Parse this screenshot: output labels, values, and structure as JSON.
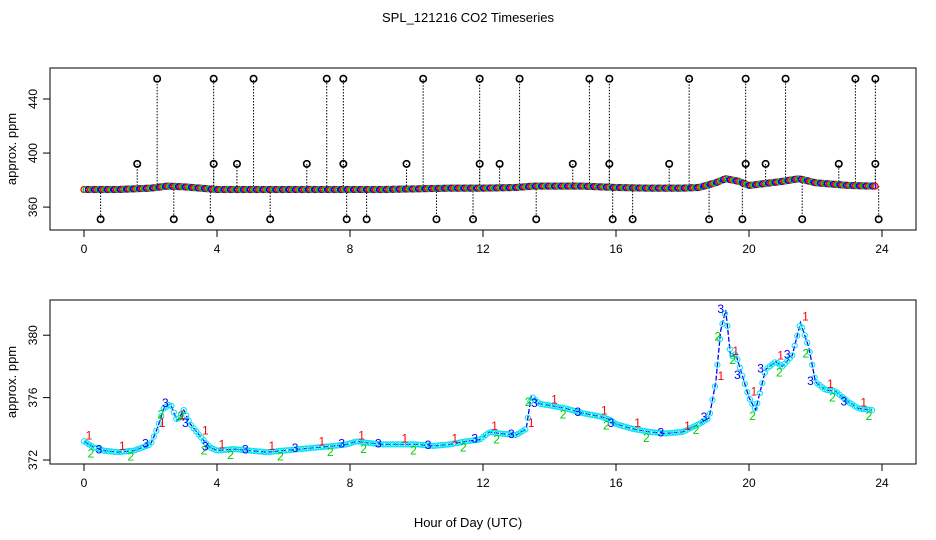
{
  "page": {
    "title": "SPL_121216  CO2 Timeseries",
    "xlabel": "Hour of Day (UTC)"
  },
  "colors": {
    "black": "#000000",
    "red": "#ff0000",
    "green": "#00cd00",
    "blue": "#0000ff",
    "cyan": "#00e5ee"
  },
  "chart_data": [
    {
      "type": "scatter",
      "panel": "top",
      "ylabel": "approx. ppm",
      "xlim": [
        0,
        24
      ],
      "ylim": [
        346,
        460
      ],
      "xticks": [
        "0",
        "4",
        "8",
        "12",
        "16",
        "20",
        "24"
      ],
      "yticks": [
        "360",
        "400",
        "440"
      ],
      "trend": {
        "x": [
          0,
          1,
          2,
          2.5,
          3,
          3.5,
          4,
          5,
          6,
          7,
          8,
          9,
          10,
          11,
          12,
          13,
          13.5,
          14,
          15,
          16,
          17,
          18,
          18.5,
          19,
          19.3,
          19.7,
          20,
          20.5,
          21,
          21.5,
          22,
          23,
          23.8
        ],
        "y": [
          373,
          373,
          374,
          375.5,
          375,
          374,
          373,
          373,
          373,
          373,
          373,
          373,
          373.5,
          374,
          374,
          374.5,
          375.5,
          375.5,
          375.5,
          374.5,
          374,
          374,
          374.5,
          378,
          381,
          379,
          376,
          377.5,
          379,
          381,
          378,
          376,
          375.5
        ]
      },
      "outliers_high": {
        "x": [
          2.2,
          3.9,
          5.1,
          7.3,
          7.8,
          10.2,
          11.9,
          13.1,
          15.2,
          15.8,
          18.2,
          19.9,
          21.1,
          23.2,
          23.8
        ],
        "y": 455
      },
      "outliers_mid": {
        "x": [
          1.6,
          3.9,
          4.6,
          6.7,
          7.8,
          9.7,
          11.9,
          12.5,
          14.7,
          15.8,
          17.6,
          19.9,
          20.5,
          22.7,
          23.8
        ],
        "y": 392
      },
      "outliers_low": {
        "x": [
          0.5,
          2.7,
          3.8,
          5.6,
          7.9,
          8.5,
          10.6,
          11.7,
          13.6,
          15.9,
          16.5,
          18.8,
          19.8,
          21.6,
          23.9
        ],
        "y": 351
      },
      "series": [
        {
          "color": "#ff0000"
        },
        {
          "color": "#00cd00"
        },
        {
          "color": "#0000ff"
        }
      ]
    },
    {
      "type": "scatter",
      "panel": "bottom",
      "ylabel": "approx. ppm",
      "xlim": [
        0,
        24
      ],
      "ylim": [
        372,
        382
      ],
      "xticks": [
        "0",
        "4",
        "8",
        "12",
        "16",
        "20",
        "24"
      ],
      "yticks": [
        "372",
        "376",
        "380"
      ],
      "series": [
        {
          "label": "1",
          "color": "#ff0000"
        },
        {
          "label": "2",
          "color": "#00cd00"
        },
        {
          "label": "3",
          "color": "#0000ff"
        }
      ],
      "x": [
        0,
        0.3,
        0.6,
        1,
        1.5,
        2,
        2.2,
        2.4,
        2.6,
        2.8,
        3,
        3.2,
        3.5,
        3.7,
        3.8,
        4,
        4.5,
        5,
        5.5,
        6,
        6.5,
        7,
        7.5,
        7.9,
        8.2,
        8.5,
        9,
        9.5,
        10,
        10.5,
        11,
        11.5,
        11.9,
        12.2,
        12.5,
        13,
        13.3,
        13.45,
        13.7,
        14,
        14.5,
        15,
        15.5,
        15.8,
        16,
        16.5,
        17,
        17.5,
        18,
        18.5,
        18.8,
        19,
        19.15,
        19.3,
        19.45,
        19.6,
        19.8,
        20,
        20.2,
        20.5,
        20.8,
        21,
        21.3,
        21.55,
        21.8,
        22,
        22.3,
        22.6,
        23,
        23.3,
        23.7
      ],
      "y": [
        373.2,
        372.8,
        372.6,
        372.5,
        372.6,
        373,
        374,
        375.3,
        375.6,
        374.5,
        375.2,
        374.3,
        373.5,
        373,
        372.8,
        372.6,
        372.7,
        372.6,
        372.5,
        372.6,
        372.7,
        372.8,
        372.9,
        373,
        373.2,
        373.1,
        373,
        373,
        373,
        372.9,
        373,
        373.2,
        373.3,
        373.8,
        373.7,
        373.6,
        374,
        376.1,
        375.6,
        375.5,
        375.3,
        375,
        374.8,
        374.6,
        374.3,
        374,
        373.8,
        373.7,
        373.8,
        374.3,
        374.7,
        377,
        380.3,
        381.6,
        378.6,
        378.8,
        377.4,
        376,
        375.2,
        377.8,
        378.3,
        378,
        378.7,
        380.8,
        379.2,
        377,
        376.5,
        376.4,
        375.7,
        375.3,
        375.2
      ]
    }
  ]
}
